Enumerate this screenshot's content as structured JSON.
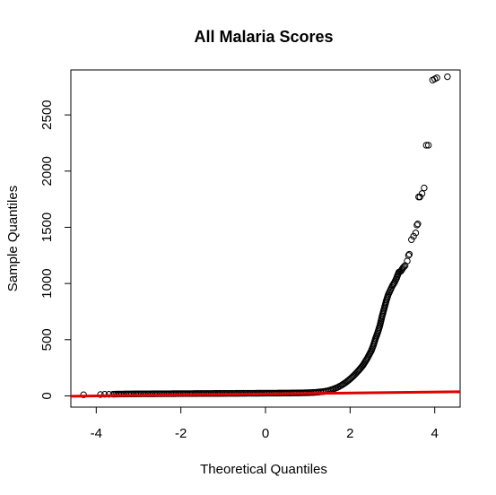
{
  "chart_data": {
    "type": "scatter",
    "title": "All Malaria Scores",
    "xlabel": "Theoretical Quantiles",
    "ylabel": "Sample Quantiles",
    "xlim": [
      -4.6,
      4.6
    ],
    "ylim": [
      -100,
      2900
    ],
    "xticks": [
      -4,
      -2,
      0,
      2,
      4
    ],
    "yticks": [
      0,
      500,
      1000,
      1500,
      2000,
      2500
    ],
    "grid": false,
    "point_style": "open-circle",
    "reference_line": {
      "color": "#e00000",
      "x": [
        -4.6,
        4.6
      ],
      "y": [
        -3,
        37
      ]
    },
    "series": [
      {
        "marker_color": "#000000",
        "points": [
          [
            -4.3,
            10
          ],
          [
            -3.9,
            12
          ],
          [
            -3.8,
            14
          ],
          [
            -3.7,
            14
          ],
          [
            -3.6,
            15
          ],
          [
            -3.5,
            16
          ],
          [
            -3.0,
            18
          ],
          [
            -2.0,
            20
          ],
          [
            -1.0,
            22
          ],
          [
            0.0,
            24
          ],
          [
            0.5,
            25
          ],
          [
            1.0,
            28
          ],
          [
            1.2,
            32
          ],
          [
            1.4,
            40
          ],
          [
            1.5,
            48
          ],
          [
            1.6,
            60
          ],
          [
            1.7,
            75
          ],
          [
            1.8,
            95
          ],
          [
            1.9,
            120
          ],
          [
            2.0,
            150
          ],
          [
            2.1,
            185
          ],
          [
            2.2,
            225
          ],
          [
            2.3,
            270
          ],
          [
            2.4,
            330
          ],
          [
            2.5,
            400
          ],
          [
            2.55,
            450
          ],
          [
            2.6,
            510
          ],
          [
            2.65,
            560
          ],
          [
            2.7,
            620
          ],
          [
            2.75,
            700
          ],
          [
            2.8,
            770
          ],
          [
            2.85,
            840
          ],
          [
            2.9,
            900
          ],
          [
            2.95,
            940
          ],
          [
            3.0,
            980
          ],
          [
            3.05,
            1010
          ],
          [
            3.1,
            1050
          ],
          [
            3.15,
            1100
          ],
          [
            3.2,
            1110
          ],
          [
            3.25,
            1140
          ],
          [
            3.3,
            1160
          ],
          [
            3.35,
            1200
          ],
          [
            3.38,
            1250
          ],
          [
            3.4,
            1260
          ],
          [
            3.45,
            1390
          ],
          [
            3.5,
            1420
          ],
          [
            3.55,
            1450
          ],
          [
            3.58,
            1520
          ],
          [
            3.6,
            1530
          ],
          [
            3.62,
            1770
          ],
          [
            3.65,
            1770
          ],
          [
            3.7,
            1800
          ],
          [
            3.75,
            1850
          ],
          [
            3.8,
            2230
          ],
          [
            3.85,
            2230
          ],
          [
            3.95,
            2810
          ],
          [
            4.0,
            2820
          ],
          [
            4.05,
            2830
          ],
          [
            4.3,
            2840
          ]
        ]
      }
    ]
  }
}
